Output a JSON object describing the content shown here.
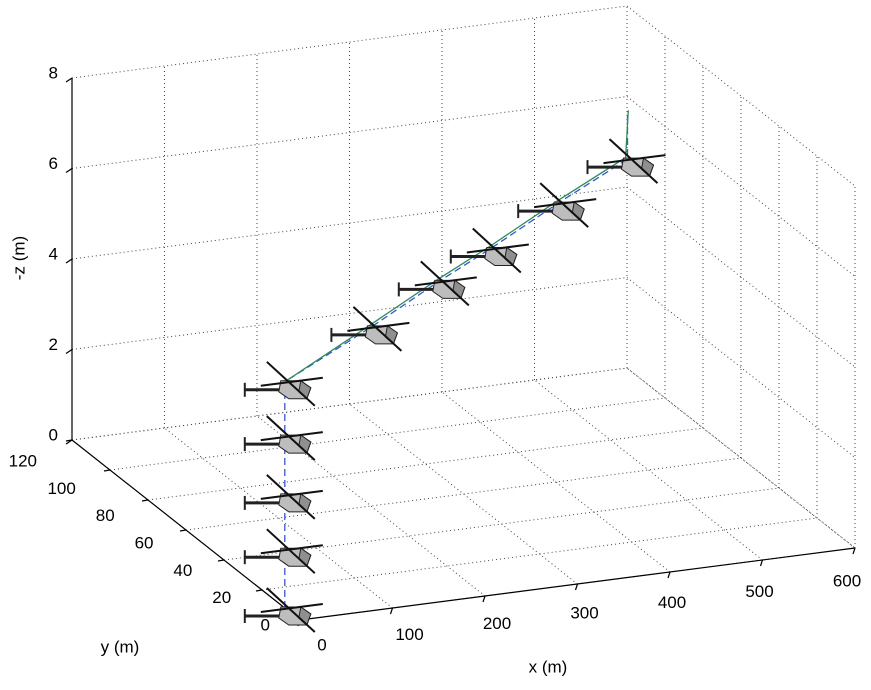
{
  "chart_data": {
    "type": "line3d",
    "xlabel": "x (m)",
    "ylabel": "y (m)",
    "zlabel": "-z (m)",
    "xlim": [
      0,
      600
    ],
    "ylim": [
      0,
      120
    ],
    "zlim": [
      0,
      8
    ],
    "xticks": [
      0,
      100,
      200,
      300,
      400,
      500,
      600
    ],
    "yticks": [
      0,
      20,
      40,
      60,
      80,
      100,
      120
    ],
    "zticks": [
      0,
      2,
      4,
      6,
      8
    ],
    "grid": true,
    "series": [
      {
        "color": "#3a55d0",
        "dashed": true,
        "x": [
          0,
          0,
          0,
          145,
          261,
          348,
          464,
          580,
          580
        ],
        "y": [
          8,
          8,
          8,
          33,
          54,
          69,
          90,
          110,
          110
        ],
        "z": [
          0,
          4.6,
          5,
          5,
          5,
          5,
          5,
          5,
          6
        ]
      },
      {
        "color": "#2e8b57",
        "dashed": false,
        "x": [
          0,
          145,
          261,
          348,
          464,
          580,
          585
        ],
        "y": [
          8,
          34,
          55,
          70,
          91,
          111,
          112
        ],
        "z": [
          5,
          5,
          5,
          5,
          5,
          5,
          6
        ]
      }
    ],
    "helicopters": {
      "x": [
        0,
        0,
        0,
        0,
        0,
        145,
        261,
        348,
        464,
        580
      ],
      "y": [
        8,
        8,
        8,
        8,
        8,
        33,
        54,
        69,
        90,
        110
      ],
      "z": [
        0,
        1.3,
        2.5,
        3.8,
        5,
        5,
        5,
        5,
        5,
        5
      ]
    }
  }
}
